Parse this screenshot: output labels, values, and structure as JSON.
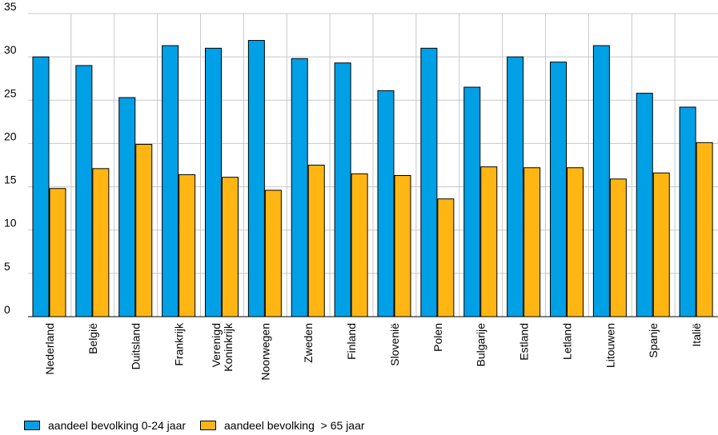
{
  "chart_data": {
    "type": "bar",
    "categories": [
      "Nederland",
      "België",
      "Duitsland",
      "Frankrijk",
      "Verenigd Koninkrijk",
      "Noorwegen",
      "Zweden",
      "Finland",
      "Slovenië",
      "Polen",
      "Bulgarije",
      "Estland",
      "Letland",
      "Litouwen",
      "Spanje",
      "Italië"
    ],
    "category_lines": [
      [
        "Nederland"
      ],
      [
        "België"
      ],
      [
        "Duitsland"
      ],
      [
        "Frankrijk"
      ],
      [
        "Verenigd",
        "Koninkrijk"
      ],
      [
        "Noorwegen"
      ],
      [
        "Zweden"
      ],
      [
        "Finland"
      ],
      [
        "Slovenië"
      ],
      [
        "Polen"
      ],
      [
        "Bulgarije"
      ],
      [
        "Estland"
      ],
      [
        "Letland"
      ],
      [
        "Litouwen"
      ],
      [
        "Spanje"
      ],
      [
        "Italië"
      ]
    ],
    "series": [
      {
        "name": "aandeel bevolking 0-24 jaar",
        "color": "#00a0e6",
        "values": [
          30.0,
          29.0,
          25.3,
          31.3,
          31.0,
          31.9,
          29.8,
          29.3,
          26.1,
          31.0,
          26.5,
          30.0,
          29.4,
          31.3,
          25.8,
          24.2
        ]
      },
      {
        "name": "aandeel bevolking  > 65 jaar",
        "color": "#ffb612",
        "values": [
          14.8,
          17.1,
          19.9,
          16.4,
          16.1,
          14.6,
          17.5,
          16.5,
          16.3,
          13.6,
          17.3,
          17.2,
          17.2,
          15.9,
          16.6,
          20.1
        ]
      }
    ],
    "yticks": [
      0,
      5,
      10,
      15,
      20,
      25,
      30,
      35
    ],
    "ylim": [
      0,
      35
    ],
    "grid": true,
    "legend_position": "bottom-left",
    "title": "",
    "xlabel": "",
    "ylabel": ""
  }
}
